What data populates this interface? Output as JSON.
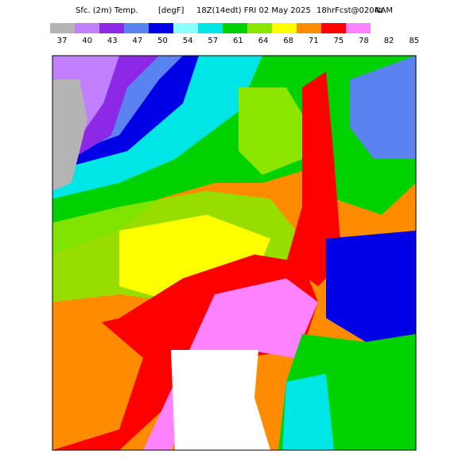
{
  "header": {
    "title": "Sfc. (2m) Temp.",
    "units": "[degF]",
    "valid": "18Z(14edt) FRI 02 May 2025",
    "forecast": "18hrFcst@0204z",
    "model": "NAM"
  },
  "colorbar": {
    "labels": [
      "37",
      "40",
      "43",
      "47",
      "50",
      "54",
      "57",
      "61",
      "64",
      "68",
      "71",
      "75",
      "78",
      "82",
      "85"
    ],
    "colors": [
      "#b4b4b4",
      "#c080ff",
      "#8c28e6",
      "#5a82f0",
      "#0000e6",
      "#8cffff",
      "#00e6e6",
      "#00d200",
      "#8ce600",
      "#ffff00",
      "#ff8c00",
      "#ff0000",
      "#ff82ff"
    ]
  }
}
